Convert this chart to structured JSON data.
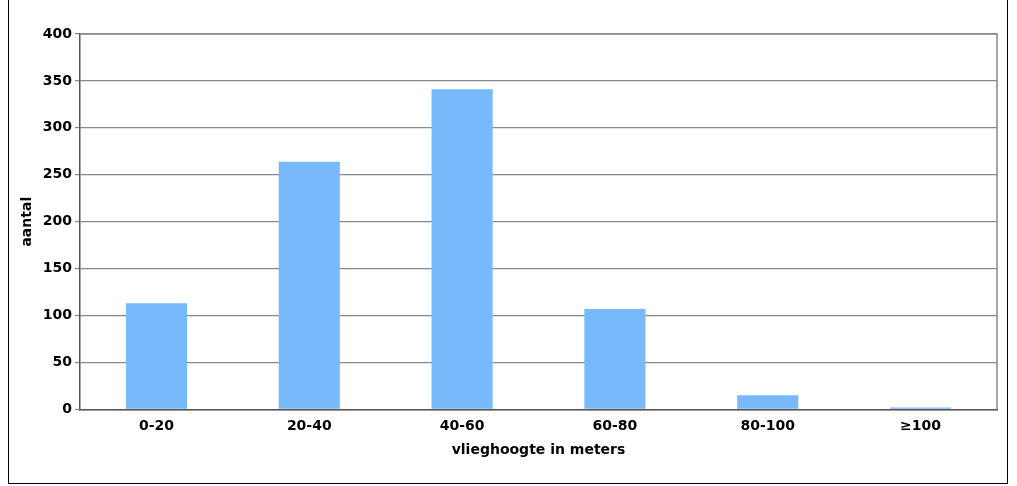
{
  "chart_data": {
    "type": "bar",
    "xlabel": "vlieghoogte in meters",
    "ylabel": "aantal",
    "categories": [
      "0-20",
      "20-40",
      "40-60",
      "60-80",
      "80-100",
      "≥100"
    ],
    "values": [
      113,
      264,
      341,
      107,
      15,
      2
    ],
    "color": "#77b9fa",
    "ylim": [
      0,
      400
    ],
    "yticks": [
      0,
      50,
      100,
      150,
      200,
      250,
      300,
      350,
      400
    ],
    "grid": "y",
    "legend": false
  }
}
